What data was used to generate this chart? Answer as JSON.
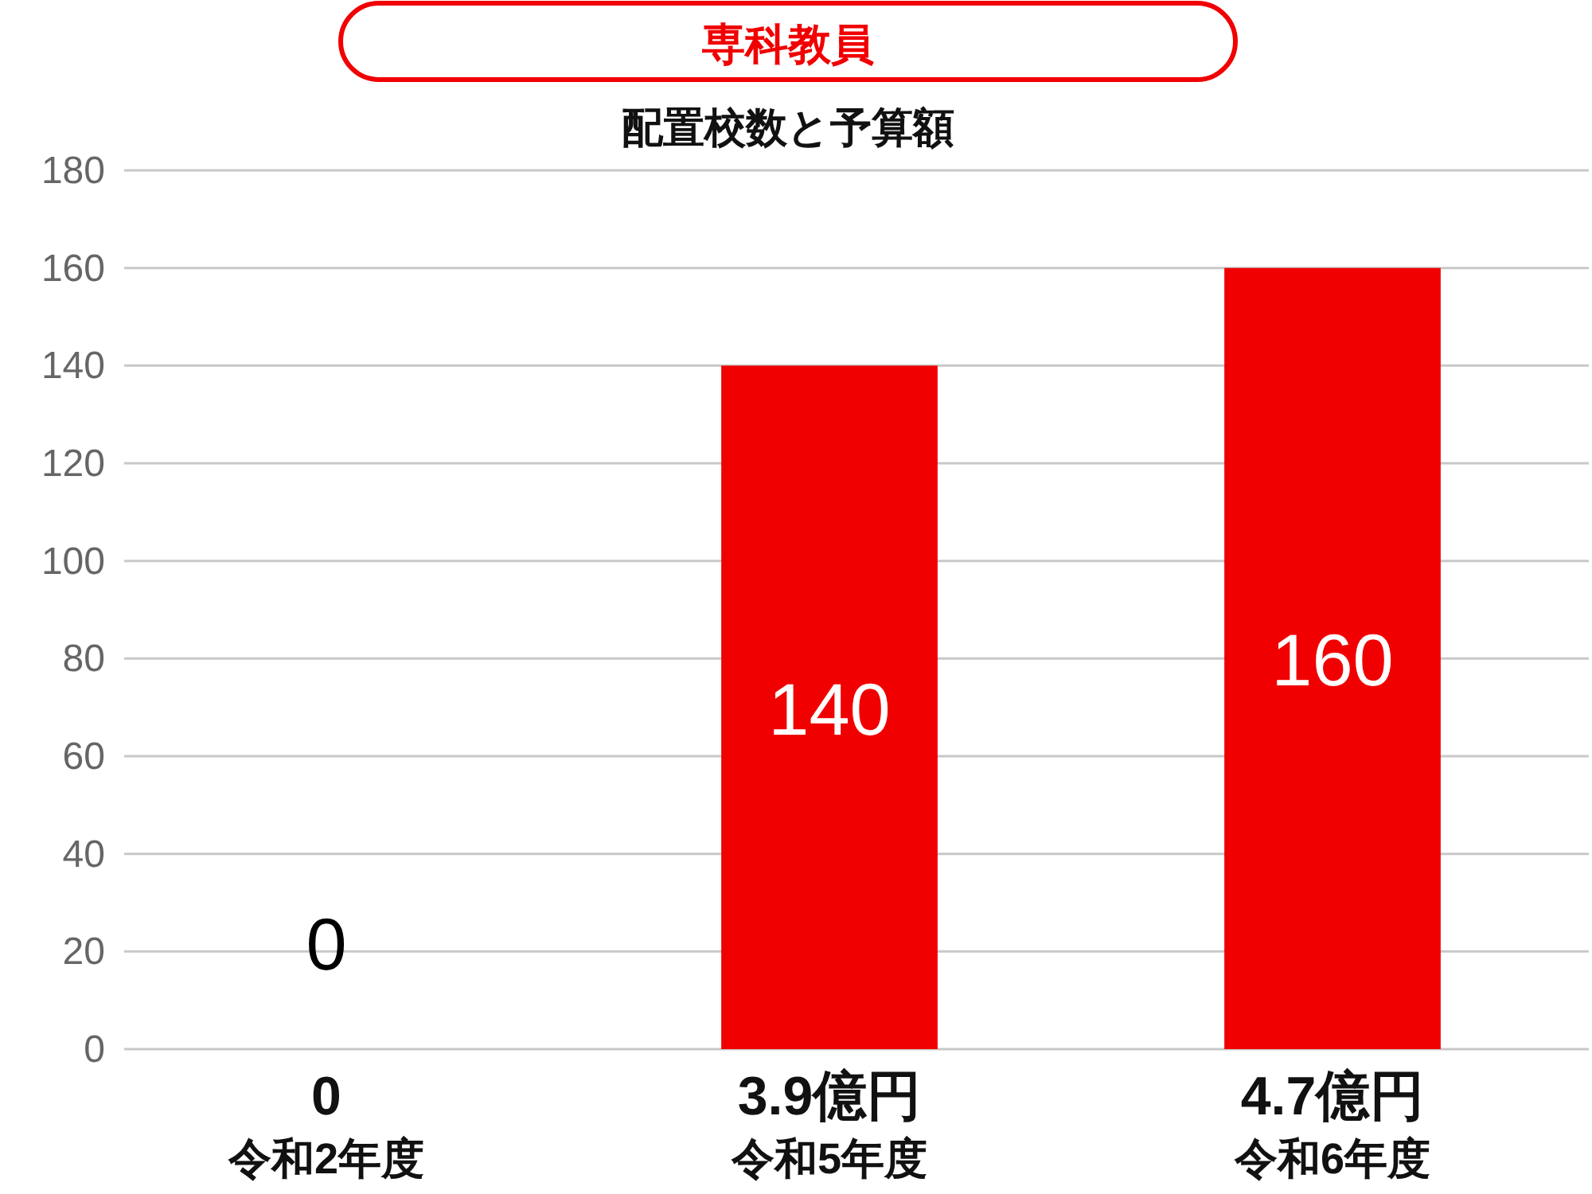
{
  "chart_data": {
    "type": "bar",
    "title": "専科教員",
    "subtitle": "配置校数と予算額",
    "categories": [
      "令和2年度",
      "令和5年度",
      "令和6年度"
    ],
    "values": [
      0,
      140,
      160
    ],
    "color": "#f00000",
    "ylim": [
      0,
      180
    ],
    "yticks": [
      0,
      20,
      40,
      60,
      80,
      100,
      120,
      140,
      160,
      180
    ],
    "grid": "y",
    "data_labels": true,
    "annotations": [
      "0",
      "3.9億円",
      "4.7億円"
    ]
  }
}
